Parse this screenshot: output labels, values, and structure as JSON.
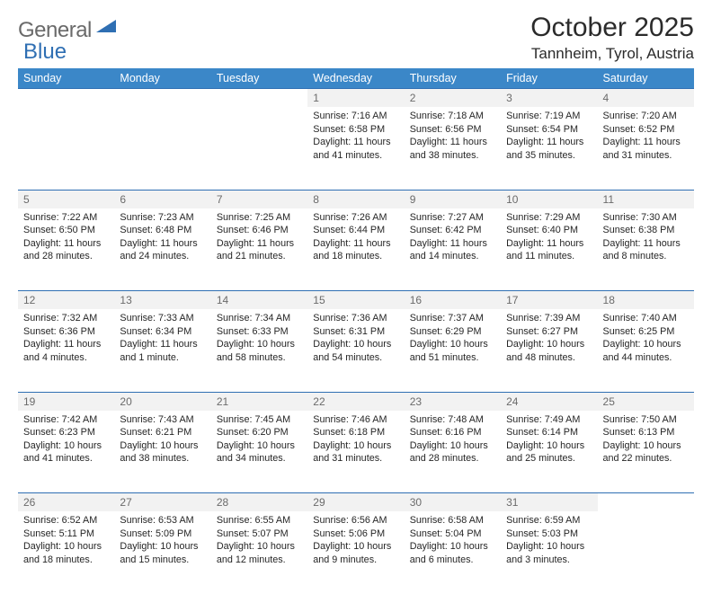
{
  "brand": {
    "name_gray": "General",
    "name_blue": "Blue"
  },
  "title": "October 2025",
  "subtitle": "Tannheim, Tyrol, Austria",
  "colors": {
    "header_bg": "#3b87c8",
    "header_text": "#ffffff",
    "rule": "#2f6fb3",
    "daynum_bg": "#f2f2f2",
    "daynum_text": "#6b6b6b",
    "body_text": "#262626",
    "logo_gray": "#6a6a6a",
    "logo_blue": "#2f6fb3",
    "page_bg": "#ffffff"
  },
  "day_headers": [
    "Sunday",
    "Monday",
    "Tuesday",
    "Wednesday",
    "Thursday",
    "Friday",
    "Saturday"
  ],
  "weeks": [
    [
      null,
      null,
      null,
      {
        "n": "1",
        "sr": "Sunrise: 7:16 AM",
        "ss": "Sunset: 6:58 PM",
        "d1": "Daylight: 11 hours",
        "d2": "and 41 minutes."
      },
      {
        "n": "2",
        "sr": "Sunrise: 7:18 AM",
        "ss": "Sunset: 6:56 PM",
        "d1": "Daylight: 11 hours",
        "d2": "and 38 minutes."
      },
      {
        "n": "3",
        "sr": "Sunrise: 7:19 AM",
        "ss": "Sunset: 6:54 PM",
        "d1": "Daylight: 11 hours",
        "d2": "and 35 minutes."
      },
      {
        "n": "4",
        "sr": "Sunrise: 7:20 AM",
        "ss": "Sunset: 6:52 PM",
        "d1": "Daylight: 11 hours",
        "d2": "and 31 minutes."
      }
    ],
    [
      {
        "n": "5",
        "sr": "Sunrise: 7:22 AM",
        "ss": "Sunset: 6:50 PM",
        "d1": "Daylight: 11 hours",
        "d2": "and 28 minutes."
      },
      {
        "n": "6",
        "sr": "Sunrise: 7:23 AM",
        "ss": "Sunset: 6:48 PM",
        "d1": "Daylight: 11 hours",
        "d2": "and 24 minutes."
      },
      {
        "n": "7",
        "sr": "Sunrise: 7:25 AM",
        "ss": "Sunset: 6:46 PM",
        "d1": "Daylight: 11 hours",
        "d2": "and 21 minutes."
      },
      {
        "n": "8",
        "sr": "Sunrise: 7:26 AM",
        "ss": "Sunset: 6:44 PM",
        "d1": "Daylight: 11 hours",
        "d2": "and 18 minutes."
      },
      {
        "n": "9",
        "sr": "Sunrise: 7:27 AM",
        "ss": "Sunset: 6:42 PM",
        "d1": "Daylight: 11 hours",
        "d2": "and 14 minutes."
      },
      {
        "n": "10",
        "sr": "Sunrise: 7:29 AM",
        "ss": "Sunset: 6:40 PM",
        "d1": "Daylight: 11 hours",
        "d2": "and 11 minutes."
      },
      {
        "n": "11",
        "sr": "Sunrise: 7:30 AM",
        "ss": "Sunset: 6:38 PM",
        "d1": "Daylight: 11 hours",
        "d2": "and 8 minutes."
      }
    ],
    [
      {
        "n": "12",
        "sr": "Sunrise: 7:32 AM",
        "ss": "Sunset: 6:36 PM",
        "d1": "Daylight: 11 hours",
        "d2": "and 4 minutes."
      },
      {
        "n": "13",
        "sr": "Sunrise: 7:33 AM",
        "ss": "Sunset: 6:34 PM",
        "d1": "Daylight: 11 hours",
        "d2": "and 1 minute."
      },
      {
        "n": "14",
        "sr": "Sunrise: 7:34 AM",
        "ss": "Sunset: 6:33 PM",
        "d1": "Daylight: 10 hours",
        "d2": "and 58 minutes."
      },
      {
        "n": "15",
        "sr": "Sunrise: 7:36 AM",
        "ss": "Sunset: 6:31 PM",
        "d1": "Daylight: 10 hours",
        "d2": "and 54 minutes."
      },
      {
        "n": "16",
        "sr": "Sunrise: 7:37 AM",
        "ss": "Sunset: 6:29 PM",
        "d1": "Daylight: 10 hours",
        "d2": "and 51 minutes."
      },
      {
        "n": "17",
        "sr": "Sunrise: 7:39 AM",
        "ss": "Sunset: 6:27 PM",
        "d1": "Daylight: 10 hours",
        "d2": "and 48 minutes."
      },
      {
        "n": "18",
        "sr": "Sunrise: 7:40 AM",
        "ss": "Sunset: 6:25 PM",
        "d1": "Daylight: 10 hours",
        "d2": "and 44 minutes."
      }
    ],
    [
      {
        "n": "19",
        "sr": "Sunrise: 7:42 AM",
        "ss": "Sunset: 6:23 PM",
        "d1": "Daylight: 10 hours",
        "d2": "and 41 minutes."
      },
      {
        "n": "20",
        "sr": "Sunrise: 7:43 AM",
        "ss": "Sunset: 6:21 PM",
        "d1": "Daylight: 10 hours",
        "d2": "and 38 minutes."
      },
      {
        "n": "21",
        "sr": "Sunrise: 7:45 AM",
        "ss": "Sunset: 6:20 PM",
        "d1": "Daylight: 10 hours",
        "d2": "and 34 minutes."
      },
      {
        "n": "22",
        "sr": "Sunrise: 7:46 AM",
        "ss": "Sunset: 6:18 PM",
        "d1": "Daylight: 10 hours",
        "d2": "and 31 minutes."
      },
      {
        "n": "23",
        "sr": "Sunrise: 7:48 AM",
        "ss": "Sunset: 6:16 PM",
        "d1": "Daylight: 10 hours",
        "d2": "and 28 minutes."
      },
      {
        "n": "24",
        "sr": "Sunrise: 7:49 AM",
        "ss": "Sunset: 6:14 PM",
        "d1": "Daylight: 10 hours",
        "d2": "and 25 minutes."
      },
      {
        "n": "25",
        "sr": "Sunrise: 7:50 AM",
        "ss": "Sunset: 6:13 PM",
        "d1": "Daylight: 10 hours",
        "d2": "and 22 minutes."
      }
    ],
    [
      {
        "n": "26",
        "sr": "Sunrise: 6:52 AM",
        "ss": "Sunset: 5:11 PM",
        "d1": "Daylight: 10 hours",
        "d2": "and 18 minutes."
      },
      {
        "n": "27",
        "sr": "Sunrise: 6:53 AM",
        "ss": "Sunset: 5:09 PM",
        "d1": "Daylight: 10 hours",
        "d2": "and 15 minutes."
      },
      {
        "n": "28",
        "sr": "Sunrise: 6:55 AM",
        "ss": "Sunset: 5:07 PM",
        "d1": "Daylight: 10 hours",
        "d2": "and 12 minutes."
      },
      {
        "n": "29",
        "sr": "Sunrise: 6:56 AM",
        "ss": "Sunset: 5:06 PM",
        "d1": "Daylight: 10 hours",
        "d2": "and 9 minutes."
      },
      {
        "n": "30",
        "sr": "Sunrise: 6:58 AM",
        "ss": "Sunset: 5:04 PM",
        "d1": "Daylight: 10 hours",
        "d2": "and 6 minutes."
      },
      {
        "n": "31",
        "sr": "Sunrise: 6:59 AM",
        "ss": "Sunset: 5:03 PM",
        "d1": "Daylight: 10 hours",
        "d2": "and 3 minutes."
      },
      null
    ]
  ]
}
